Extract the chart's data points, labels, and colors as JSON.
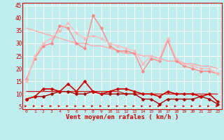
{
  "x": [
    0,
    1,
    2,
    3,
    4,
    5,
    6,
    7,
    8,
    9,
    10,
    11,
    12,
    13,
    14,
    15,
    16,
    17,
    18,
    19,
    20,
    21,
    22,
    23
  ],
  "background_color": "#c0eeee",
  "grid_color": "#ffffff",
  "xlabel": "Vent moyen/en rafales ( km/h )",
  "xlabel_color": "#cc0000",
  "tick_color": "#cc0000",
  "series": [
    {
      "y": [
        16,
        24,
        29,
        30,
        37,
        36,
        30,
        28,
        41,
        36,
        29,
        27,
        27,
        26,
        19,
        24,
        23,
        31,
        23,
        21,
        20,
        19,
        19,
        18
      ],
      "color": "#ff8888",
      "marker": "D",
      "markersize": 2.5,
      "linewidth": 1.0,
      "linestyle": "-",
      "zorder": 4
    },
    {
      "y": [
        36,
        35,
        34,
        33,
        32,
        31,
        30,
        30,
        29,
        29,
        28,
        27,
        26,
        26,
        25,
        25,
        24,
        23,
        23,
        22,
        22,
        21,
        21,
        20
      ],
      "color": "#ffaaaa",
      "marker": null,
      "markersize": 0,
      "linewidth": 1.0,
      "linestyle": "-",
      "zorder": 3
    },
    {
      "y": [
        15,
        25,
        30,
        32,
        35,
        38,
        34,
        32,
        33,
        32,
        30,
        29,
        28,
        27,
        22,
        25,
        24,
        32,
        24,
        22,
        21,
        20,
        20,
        18
      ],
      "color": "#ffbbbb",
      "marker": "D",
      "markersize": 2.5,
      "linewidth": 1.0,
      "linestyle": "-",
      "zorder": 4
    },
    {
      "y": [
        8,
        9,
        12,
        12,
        11,
        14,
        11,
        15,
        11,
        10,
        11,
        12,
        12,
        11,
        10,
        10,
        9,
        11,
        10,
        10,
        10,
        9,
        10,
        7
      ],
      "color": "#cc0000",
      "marker": "D",
      "markersize": 2.5,
      "linewidth": 1.2,
      "linestyle": "-",
      "zorder": 5
    },
    {
      "y": [
        11,
        11,
        11,
        11,
        11,
        11,
        11,
        11,
        11,
        11,
        11,
        11,
        10,
        10,
        10,
        10,
        10,
        10,
        10,
        10,
        10,
        10,
        10,
        10
      ],
      "color": "#cc0000",
      "marker": null,
      "markersize": 0,
      "linewidth": 0.8,
      "linestyle": "-",
      "zorder": 3
    },
    {
      "y": [
        8,
        9,
        9,
        10,
        11,
        11,
        10,
        10,
        11,
        10,
        10,
        10,
        10,
        10,
        8,
        8,
        6,
        8,
        8,
        8,
        8,
        9,
        8,
        6
      ],
      "color": "#aa0000",
      "marker": "D",
      "markersize": 2.5,
      "linewidth": 1.0,
      "linestyle": "-",
      "zorder": 4
    }
  ],
  "ylim": [
    4,
    46
  ],
  "yticks": [
    5,
    10,
    15,
    20,
    25,
    30,
    35,
    40,
    45
  ],
  "figsize": [
    3.2,
    2.0
  ],
  "dpi": 100
}
